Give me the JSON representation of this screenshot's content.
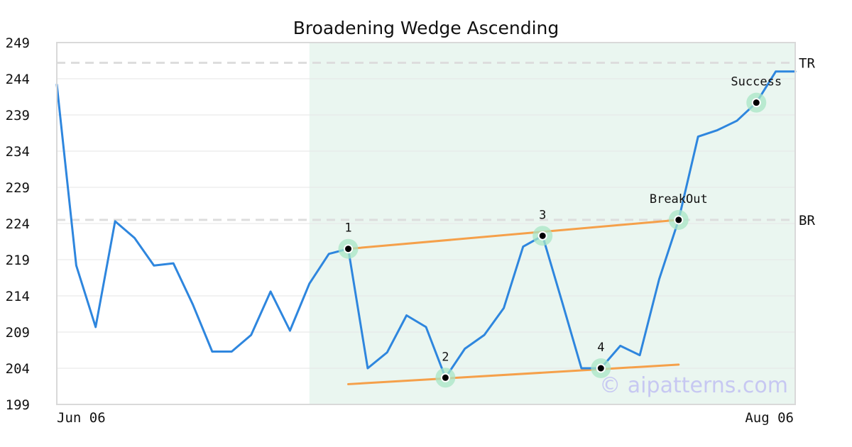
{
  "chart_data": {
    "type": "line",
    "title": "Broadening Wedge Ascending",
    "xlabel": "",
    "ylabel": "",
    "ylim": [
      199,
      249
    ],
    "y_ticks": [
      "249",
      "244",
      "239",
      "234",
      "229",
      "224",
      "219",
      "214",
      "209",
      "204",
      "199"
    ],
    "x_ticks": [
      "Jun 06",
      "Aug 06"
    ],
    "grid": true,
    "colors": {
      "price": "#2e86de",
      "trendline": "#f5a04a",
      "highlight": "#eaf6f0",
      "marker_halo": "#a8e6c6",
      "level_line": "#dddddd",
      "watermark": "#c7c8f2"
    },
    "series": [
      {
        "values": [
          243.2,
          218.2,
          209.7,
          224.3,
          222.0,
          218.2,
          218.5,
          212.8,
          206.3,
          206.3,
          208.6,
          214.6,
          209.2,
          215.7,
          219.8,
          220.5,
          204.0,
          206.2,
          211.3,
          209.7,
          202.7,
          206.7,
          208.6,
          212.3,
          220.8,
          222.3,
          213.2,
          204.0,
          204.0,
          207.1,
          205.8,
          216.3,
          224.5,
          236.0,
          236.9,
          238.2,
          240.7,
          245.0,
          245.0
        ]
      }
    ],
    "highlight_range": [
      13,
      38
    ],
    "reference_levels": [
      {
        "label": "TR",
        "value": 246.2
      },
      {
        "label": "BR",
        "value": 224.5
      }
    ],
    "trendlines": [
      {
        "from": [
          15,
          220.5
        ],
        "to": [
          32,
          224.5
        ]
      },
      {
        "from": [
          15,
          201.8
        ],
        "to": [
          32,
          204.5
        ]
      }
    ],
    "points": [
      {
        "label": "1",
        "x": 15,
        "y": 220.5,
        "label_pos": "above"
      },
      {
        "label": "2",
        "x": 20,
        "y": 202.7,
        "label_pos": "above"
      },
      {
        "label": "3",
        "x": 25,
        "y": 222.3,
        "label_pos": "above"
      },
      {
        "label": "4",
        "x": 28,
        "y": 204.0,
        "label_pos": "above"
      },
      {
        "label": "BreakOut",
        "x": 32,
        "y": 224.5,
        "label_pos": "above"
      },
      {
        "label": "Success",
        "x": 36,
        "y": 240.7,
        "label_pos": "above"
      }
    ],
    "watermark": "© aipatterns.com"
  }
}
